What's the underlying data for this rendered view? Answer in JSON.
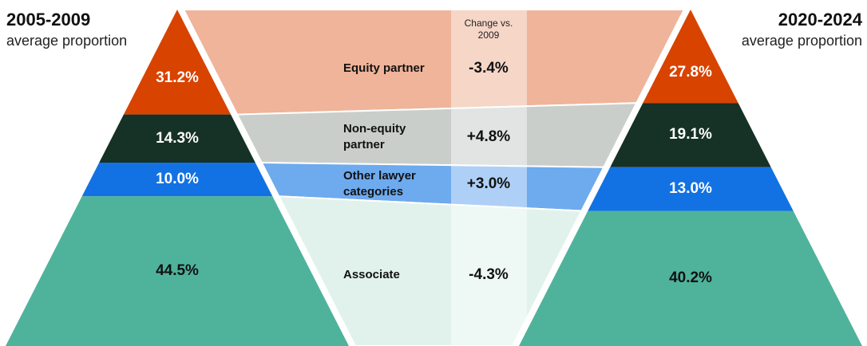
{
  "chart_data": {
    "type": "pyramid",
    "categories": [
      "Equity partner",
      "Non-equity partner",
      "Other lawyer categories",
      "Associate"
    ],
    "subtitle": "average proportion",
    "series": [
      {
        "name": "2005-2009",
        "values": [
          31.2,
          14.3,
          10.0,
          44.5
        ],
        "value_labels": [
          "31.2%",
          "14.3%",
          "10.0%",
          "44.5%"
        ]
      },
      {
        "name": "2020-2024",
        "values": [
          27.8,
          19.1,
          13.0,
          40.2
        ],
        "value_labels": [
          "27.8%",
          "19.1%",
          "13.0%",
          "40.2%"
        ]
      }
    ],
    "change": {
      "title": "Change vs. 2009",
      "values": [
        -3.4,
        4.8,
        3.0,
        -4.3
      ],
      "value_labels": [
        "-3.4%",
        "+4.8%",
        "+3.0%",
        "-4.3%"
      ]
    },
    "colors": [
      "#d84300",
      "#163126",
      "#1272e3",
      "#4fb39c"
    ],
    "band_colors": [
      "#efb49a",
      "#c9cecb",
      "#6eaaee",
      "#e1f2ed"
    ],
    "text_colors": [
      "#ffffff",
      "#ffffff",
      "#ffffff",
      "#111111"
    ]
  }
}
